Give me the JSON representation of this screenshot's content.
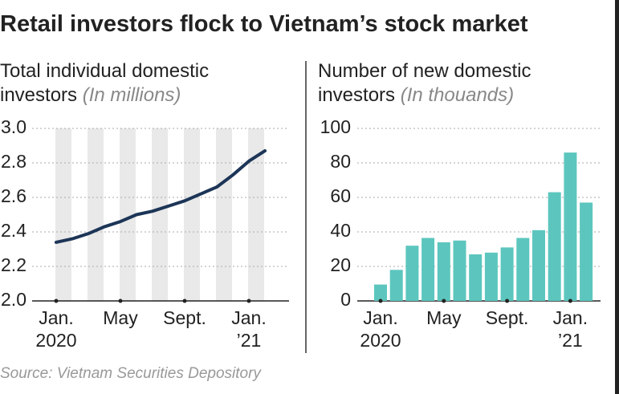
{
  "title": "Retail investors flock to Vietnam’s stock market",
  "chart_data": [
    {
      "type": "line",
      "title": "Total individual domestic investors",
      "unit": "(In millions)",
      "categories": [
        "Jan.\n2020",
        null,
        null,
        null,
        "May",
        null,
        null,
        null,
        "Sept.",
        null,
        null,
        null,
        "Jan.\n’21",
        null
      ],
      "values": [
        2.34,
        2.36,
        2.39,
        2.43,
        2.46,
        2.5,
        2.52,
        2.55,
        2.58,
        2.62,
        2.66,
        2.73,
        2.81,
        2.87
      ],
      "color": "#1c3557",
      "ylim": [
        2.0,
        3.0
      ],
      "yticks": [
        {
          "value": 2.0,
          "label": "2.0"
        },
        2.2,
        2.4,
        2.6,
        2.8,
        {
          "value": 3.0,
          "label": "3.0"
        }
      ],
      "grid": true
    },
    {
      "type": "bar",
      "title": "Number of new domestic investors",
      "unit": "(In thouands)",
      "categories": [
        "Jan.\n2020",
        null,
        null,
        null,
        "May",
        null,
        null,
        null,
        "Sept.",
        null,
        null,
        null,
        "Jan.\n’21",
        null
      ],
      "values": [
        9.5,
        18,
        32,
        36.5,
        34,
        35,
        27,
        28,
        31,
        36.5,
        41,
        63,
        86,
        57
      ],
      "color": "#5cc6be",
      "ylim": [
        0,
        100
      ],
      "yticks": [
        0,
        20,
        40,
        60,
        80,
        100
      ],
      "grid": true
    }
  ],
  "source": "Source: Vietnam Securities Depository"
}
